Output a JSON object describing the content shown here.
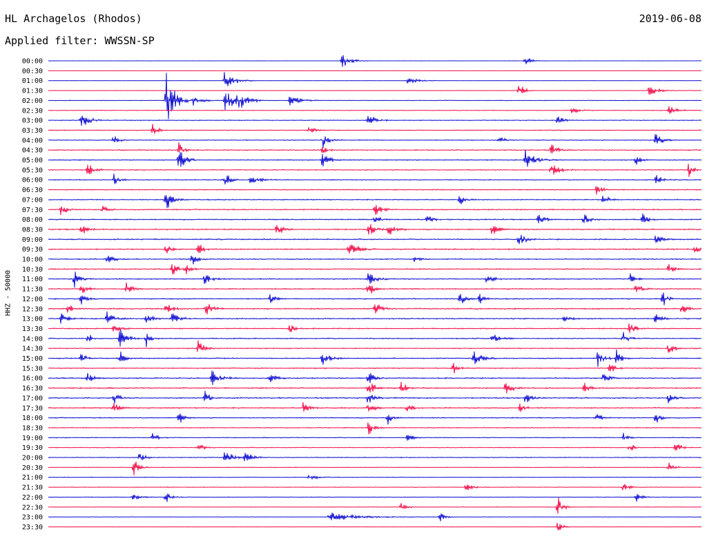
{
  "header": {
    "station": "HL Archagelos (Rhodos)",
    "date": "2019-06-08",
    "filter": "Applied filter: WWSSN-SP"
  },
  "colors": {
    "trace_a": "#1010d0",
    "trace_b": "#f0104a"
  },
  "chart_data": {
    "type": "line",
    "subtype": "helicorder",
    "ylabel": "HHZ - 50000",
    "row_labels": [
      "00:00",
      "00:30",
      "01:00",
      "01:30",
      "02:00",
      "02:30",
      "03:00",
      "03:30",
      "04:00",
      "04:30",
      "05:00",
      "05:30",
      "06:00",
      "06:30",
      "07:00",
      "07:30",
      "08:00",
      "08:30",
      "09:00",
      "09:30",
      "10:00",
      "10:30",
      "11:00",
      "11:30",
      "12:00",
      "12:30",
      "13:00",
      "13:30",
      "14:00",
      "14:30",
      "15:00",
      "15:30",
      "16:00",
      "16:30",
      "17:00",
      "17:30",
      "18:00",
      "18:30",
      "19:00",
      "19:30",
      "20:00",
      "20:30",
      "21:00",
      "21:30",
      "22:00",
      "22:30",
      "23:00",
      "23:30"
    ],
    "noise_level": [
      0.08,
      0.1,
      0.15,
      0.25,
      0.35,
      0.35,
      0.45,
      0.45,
      0.45,
      0.55,
      0.55,
      0.5,
      0.5,
      0.55,
      0.55,
      0.6,
      0.6,
      0.65,
      0.65,
      0.65,
      0.6,
      0.6,
      0.6,
      0.65,
      0.6,
      0.7,
      0.65,
      0.6,
      0.6,
      0.55,
      0.6,
      0.6,
      0.65,
      0.7,
      0.7,
      0.65,
      0.55,
      0.5,
      0.45,
      0.45,
      0.45,
      0.4,
      0.35,
      0.35,
      0.3,
      0.3,
      0.25,
      0.2
    ],
    "events": [
      {
        "row": 0,
        "x": 0.45,
        "a": 14,
        "w": 10
      },
      {
        "row": 0,
        "x": 0.73,
        "a": 8,
        "w": 8
      },
      {
        "row": 2,
        "x": 0.27,
        "a": 18,
        "w": 12
      },
      {
        "row": 2,
        "x": 0.55,
        "a": 6,
        "w": 14
      },
      {
        "row": 3,
        "x": 0.72,
        "a": 16,
        "w": 6
      },
      {
        "row": 3,
        "x": 0.92,
        "a": 10,
        "w": 10
      },
      {
        "row": 4,
        "x": 0.18,
        "a": 60,
        "w": 10
      },
      {
        "row": 4,
        "x": 0.22,
        "a": 12,
        "w": 10
      },
      {
        "row": 4,
        "x": 0.27,
        "a": 22,
        "w": 14
      },
      {
        "row": 4,
        "x": 0.29,
        "a": 18,
        "w": 10
      },
      {
        "row": 4,
        "x": 0.37,
        "a": 10,
        "w": 12
      },
      {
        "row": 5,
        "x": 0.8,
        "a": 10,
        "w": 8
      },
      {
        "row": 5,
        "x": 0.95,
        "a": 8,
        "w": 10
      },
      {
        "row": 6,
        "x": 0.05,
        "a": 14,
        "w": 10
      },
      {
        "row": 6,
        "x": 0.49,
        "a": 12,
        "w": 8
      },
      {
        "row": 6,
        "x": 0.78,
        "a": 12,
        "w": 6
      },
      {
        "row": 7,
        "x": 0.16,
        "a": 14,
        "w": 6
      },
      {
        "row": 7,
        "x": 0.4,
        "a": 8,
        "w": 6
      },
      {
        "row": 8,
        "x": 0.1,
        "a": 16,
        "w": 6
      },
      {
        "row": 8,
        "x": 0.42,
        "a": 12,
        "w": 8
      },
      {
        "row": 8,
        "x": 0.69,
        "a": 10,
        "w": 6
      },
      {
        "row": 8,
        "x": 0.93,
        "a": 14,
        "w": 8
      },
      {
        "row": 9,
        "x": 0.2,
        "a": 16,
        "w": 6
      },
      {
        "row": 9,
        "x": 0.42,
        "a": 10,
        "w": 6
      },
      {
        "row": 9,
        "x": 0.77,
        "a": 12,
        "w": 8
      },
      {
        "row": 10,
        "x": 0.2,
        "a": 22,
        "w": 8
      },
      {
        "row": 10,
        "x": 0.42,
        "a": 14,
        "w": 8
      },
      {
        "row": 10,
        "x": 0.73,
        "a": 18,
        "w": 12
      },
      {
        "row": 10,
        "x": 0.9,
        "a": 10,
        "w": 6
      },
      {
        "row": 11,
        "x": 0.06,
        "a": 12,
        "w": 8
      },
      {
        "row": 11,
        "x": 0.77,
        "a": 12,
        "w": 10
      },
      {
        "row": 11,
        "x": 0.98,
        "a": 14,
        "w": 6
      },
      {
        "row": 12,
        "x": 0.1,
        "a": 14,
        "w": 6
      },
      {
        "row": 12,
        "x": 0.27,
        "a": 18,
        "w": 6
      },
      {
        "row": 12,
        "x": 0.31,
        "a": 10,
        "w": 10
      },
      {
        "row": 12,
        "x": 0.93,
        "a": 10,
        "w": 8
      },
      {
        "row": 13,
        "x": 0.84,
        "a": 12,
        "w": 6
      },
      {
        "row": 14,
        "x": 0.18,
        "a": 20,
        "w": 8
      },
      {
        "row": 14,
        "x": 0.63,
        "a": 12,
        "w": 6
      },
      {
        "row": 14,
        "x": 0.85,
        "a": 10,
        "w": 6
      },
      {
        "row": 15,
        "x": 0.02,
        "a": 14,
        "w": 6
      },
      {
        "row": 15,
        "x": 0.08,
        "a": 12,
        "w": 6
      },
      {
        "row": 15,
        "x": 0.5,
        "a": 14,
        "w": 8
      },
      {
        "row": 16,
        "x": 0.5,
        "a": 10,
        "w": 6
      },
      {
        "row": 16,
        "x": 0.58,
        "a": 12,
        "w": 6
      },
      {
        "row": 16,
        "x": 0.75,
        "a": 12,
        "w": 8
      },
      {
        "row": 16,
        "x": 0.82,
        "a": 12,
        "w": 6
      },
      {
        "row": 16,
        "x": 0.91,
        "a": 14,
        "w": 6
      },
      {
        "row": 17,
        "x": 0.05,
        "a": 14,
        "w": 6
      },
      {
        "row": 17,
        "x": 0.35,
        "a": 16,
        "w": 6
      },
      {
        "row": 17,
        "x": 0.49,
        "a": 20,
        "w": 6
      },
      {
        "row": 17,
        "x": 0.52,
        "a": 14,
        "w": 8
      },
      {
        "row": 17,
        "x": 0.68,
        "a": 14,
        "w": 6
      },
      {
        "row": 18,
        "x": 0.72,
        "a": 14,
        "w": 8
      },
      {
        "row": 18,
        "x": 0.93,
        "a": 14,
        "w": 6
      },
      {
        "row": 19,
        "x": 0.18,
        "a": 14,
        "w": 6
      },
      {
        "row": 19,
        "x": 0.23,
        "a": 12,
        "w": 6
      },
      {
        "row": 19,
        "x": 0.46,
        "a": 16,
        "w": 10
      },
      {
        "row": 19,
        "x": 0.99,
        "a": 10,
        "w": 6
      },
      {
        "row": 20,
        "x": 0.09,
        "a": 10,
        "w": 8
      },
      {
        "row": 20,
        "x": 0.22,
        "a": 14,
        "w": 6
      },
      {
        "row": 20,
        "x": 0.56,
        "a": 8,
        "w": 6
      },
      {
        "row": 21,
        "x": 0.19,
        "a": 14,
        "w": 6
      },
      {
        "row": 21,
        "x": 0.21,
        "a": 10,
        "w": 6
      },
      {
        "row": 21,
        "x": 0.95,
        "a": 10,
        "w": 6
      },
      {
        "row": 22,
        "x": 0.04,
        "a": 16,
        "w": 6
      },
      {
        "row": 22,
        "x": 0.24,
        "a": 16,
        "w": 6
      },
      {
        "row": 22,
        "x": 0.49,
        "a": 14,
        "w": 8
      },
      {
        "row": 22,
        "x": 0.67,
        "a": 18,
        "w": 6
      },
      {
        "row": 22,
        "x": 0.89,
        "a": 12,
        "w": 6
      },
      {
        "row": 23,
        "x": 0.05,
        "a": 14,
        "w": 6
      },
      {
        "row": 23,
        "x": 0.12,
        "a": 12,
        "w": 6
      },
      {
        "row": 23,
        "x": 0.49,
        "a": 16,
        "w": 6
      },
      {
        "row": 23,
        "x": 0.9,
        "a": 12,
        "w": 6
      },
      {
        "row": 24,
        "x": 0.05,
        "a": 10,
        "w": 6
      },
      {
        "row": 24,
        "x": 0.34,
        "a": 10,
        "w": 6
      },
      {
        "row": 24,
        "x": 0.63,
        "a": 14,
        "w": 6
      },
      {
        "row": 24,
        "x": 0.66,
        "a": 10,
        "w": 6
      },
      {
        "row": 24,
        "x": 0.94,
        "a": 14,
        "w": 6
      },
      {
        "row": 25,
        "x": 0.03,
        "a": 10,
        "w": 6
      },
      {
        "row": 25,
        "x": 0.18,
        "a": 12,
        "w": 8
      },
      {
        "row": 25,
        "x": 0.24,
        "a": 14,
        "w": 8
      },
      {
        "row": 25,
        "x": 0.5,
        "a": 12,
        "w": 8
      },
      {
        "row": 25,
        "x": 0.97,
        "a": 14,
        "w": 6
      },
      {
        "row": 26,
        "x": 0.02,
        "a": 14,
        "w": 8
      },
      {
        "row": 26,
        "x": 0.09,
        "a": 14,
        "w": 8
      },
      {
        "row": 26,
        "x": 0.15,
        "a": 14,
        "w": 6
      },
      {
        "row": 26,
        "x": 0.19,
        "a": 14,
        "w": 8
      },
      {
        "row": 26,
        "x": 0.79,
        "a": 8,
        "w": 6
      },
      {
        "row": 26,
        "x": 0.93,
        "a": 12,
        "w": 6
      },
      {
        "row": 27,
        "x": 0.1,
        "a": 10,
        "w": 8
      },
      {
        "row": 27,
        "x": 0.37,
        "a": 10,
        "w": 6
      },
      {
        "row": 27,
        "x": 0.89,
        "a": 12,
        "w": 6
      },
      {
        "row": 28,
        "x": 0.06,
        "a": 10,
        "w": 6
      },
      {
        "row": 28,
        "x": 0.11,
        "a": 18,
        "w": 8
      },
      {
        "row": 28,
        "x": 0.15,
        "a": 14,
        "w": 6
      },
      {
        "row": 28,
        "x": 0.68,
        "a": 10,
        "w": 8
      },
      {
        "row": 28,
        "x": 0.88,
        "a": 12,
        "w": 6
      },
      {
        "row": 29,
        "x": 0.23,
        "a": 18,
        "w": 6
      },
      {
        "row": 29,
        "x": 0.95,
        "a": 14,
        "w": 6
      },
      {
        "row": 30,
        "x": 0.05,
        "a": 12,
        "w": 6
      },
      {
        "row": 30,
        "x": 0.11,
        "a": 12,
        "w": 6
      },
      {
        "row": 30,
        "x": 0.42,
        "a": 14,
        "w": 8
      },
      {
        "row": 30,
        "x": 0.65,
        "a": 16,
        "w": 10
      },
      {
        "row": 30,
        "x": 0.84,
        "a": 16,
        "w": 8
      },
      {
        "row": 30,
        "x": 0.87,
        "a": 14,
        "w": 6
      },
      {
        "row": 31,
        "x": 0.62,
        "a": 10,
        "w": 6
      },
      {
        "row": 31,
        "x": 0.86,
        "a": 12,
        "w": 6
      },
      {
        "row": 32,
        "x": 0.06,
        "a": 10,
        "w": 8
      },
      {
        "row": 32,
        "x": 0.25,
        "a": 14,
        "w": 10
      },
      {
        "row": 32,
        "x": 0.34,
        "a": 16,
        "w": 6
      },
      {
        "row": 32,
        "x": 0.49,
        "a": 16,
        "w": 6
      },
      {
        "row": 32,
        "x": 0.85,
        "a": 14,
        "w": 6
      },
      {
        "row": 33,
        "x": 0.49,
        "a": 20,
        "w": 6
      },
      {
        "row": 33,
        "x": 0.54,
        "a": 12,
        "w": 6
      },
      {
        "row": 33,
        "x": 0.7,
        "a": 20,
        "w": 6
      },
      {
        "row": 33,
        "x": 0.82,
        "a": 12,
        "w": 6
      },
      {
        "row": 34,
        "x": 0.1,
        "a": 14,
        "w": 6
      },
      {
        "row": 34,
        "x": 0.24,
        "a": 14,
        "w": 6
      },
      {
        "row": 34,
        "x": 0.49,
        "a": 16,
        "w": 6
      },
      {
        "row": 34,
        "x": 0.73,
        "a": 14,
        "w": 8
      },
      {
        "row": 34,
        "x": 0.95,
        "a": 12,
        "w": 6
      },
      {
        "row": 35,
        "x": 0.1,
        "a": 12,
        "w": 6
      },
      {
        "row": 35,
        "x": 0.39,
        "a": 14,
        "w": 6
      },
      {
        "row": 35,
        "x": 0.49,
        "a": 16,
        "w": 6
      },
      {
        "row": 35,
        "x": 0.55,
        "a": 12,
        "w": 6
      },
      {
        "row": 35,
        "x": 0.72,
        "a": 10,
        "w": 6
      },
      {
        "row": 36,
        "x": 0.2,
        "a": 12,
        "w": 6
      },
      {
        "row": 36,
        "x": 0.52,
        "a": 10,
        "w": 6
      },
      {
        "row": 36,
        "x": 0.84,
        "a": 14,
        "w": 6
      },
      {
        "row": 36,
        "x": 0.93,
        "a": 10,
        "w": 6
      },
      {
        "row": 37,
        "x": 0.49,
        "a": 14,
        "w": 6
      },
      {
        "row": 38,
        "x": 0.16,
        "a": 10,
        "w": 6
      },
      {
        "row": 38,
        "x": 0.55,
        "a": 8,
        "w": 6
      },
      {
        "row": 38,
        "x": 0.88,
        "a": 8,
        "w": 6
      },
      {
        "row": 39,
        "x": 0.23,
        "a": 10,
        "w": 6
      },
      {
        "row": 39,
        "x": 0.89,
        "a": 12,
        "w": 6
      },
      {
        "row": 39,
        "x": 0.96,
        "a": 12,
        "w": 6
      },
      {
        "row": 40,
        "x": 0.14,
        "a": 10,
        "w": 6
      },
      {
        "row": 40,
        "x": 0.27,
        "a": 14,
        "w": 10
      },
      {
        "row": 40,
        "x": 0.3,
        "a": 12,
        "w": 8
      },
      {
        "row": 41,
        "x": 0.13,
        "a": 20,
        "w": 6
      },
      {
        "row": 41,
        "x": 0.95,
        "a": 14,
        "w": 6
      },
      {
        "row": 42,
        "x": 0.4,
        "a": 8,
        "w": 8
      },
      {
        "row": 43,
        "x": 0.64,
        "a": 10,
        "w": 6
      },
      {
        "row": 43,
        "x": 0.88,
        "a": 10,
        "w": 6
      },
      {
        "row": 44,
        "x": 0.13,
        "a": 8,
        "w": 8
      },
      {
        "row": 44,
        "x": 0.18,
        "a": 12,
        "w": 6
      },
      {
        "row": 44,
        "x": 0.9,
        "a": 10,
        "w": 6
      },
      {
        "row": 45,
        "x": 0.54,
        "a": 10,
        "w": 6
      },
      {
        "row": 45,
        "x": 0.78,
        "a": 18,
        "w": 6
      },
      {
        "row": 46,
        "x": 0.43,
        "a": 8,
        "w": 36
      },
      {
        "row": 46,
        "x": 0.6,
        "a": 10,
        "w": 6
      },
      {
        "row": 47,
        "x": 0.78,
        "a": 12,
        "w": 6
      }
    ]
  }
}
